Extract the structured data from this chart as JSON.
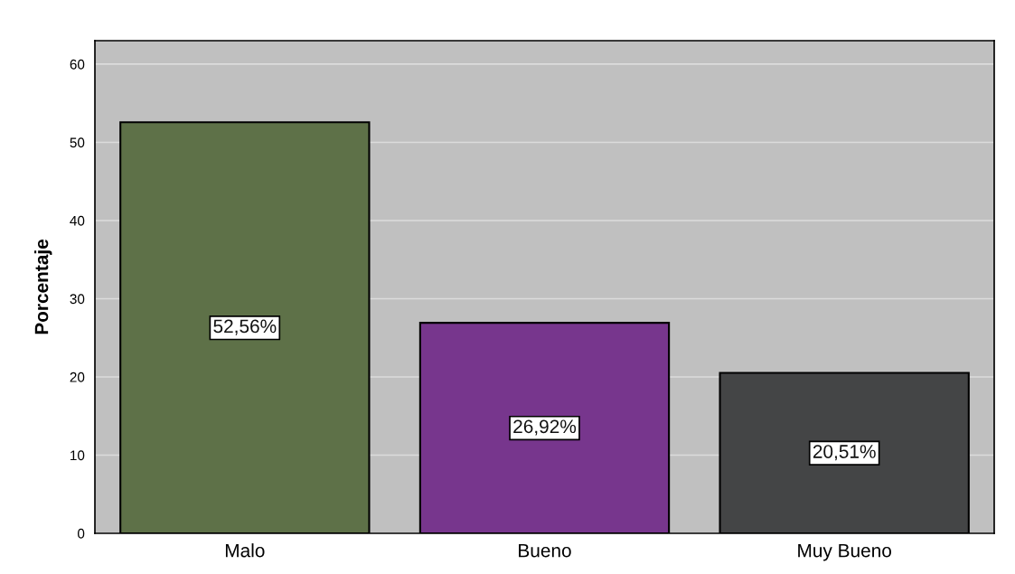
{
  "chart_data": {
    "type": "bar",
    "ylabel": "Porcentaje",
    "categories": [
      "Malo",
      "Bueno",
      "Muy Bueno"
    ],
    "values": [
      52.56,
      26.92,
      20.51
    ],
    "colors": [
      "#5e7148",
      "#77368d",
      "#444546"
    ],
    "value_labels": [
      "52,56%",
      "26,92%",
      "20,51%"
    ],
    "ylim": [
      0,
      63
    ],
    "yticks": [
      0,
      10,
      20,
      30,
      40,
      50,
      60
    ],
    "grid": "y",
    "legend": false
  }
}
